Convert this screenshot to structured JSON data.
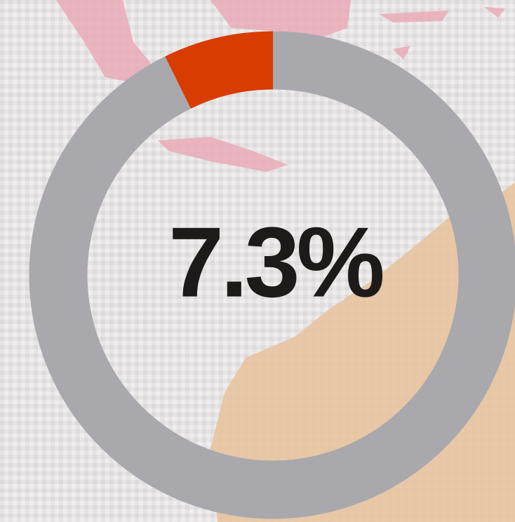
{
  "chart_data": {
    "type": "donut",
    "values": [
      7.3,
      92.7
    ],
    "colors": [
      "#d83c00",
      "#a9a8ad"
    ],
    "label": "7.3%"
  }
}
